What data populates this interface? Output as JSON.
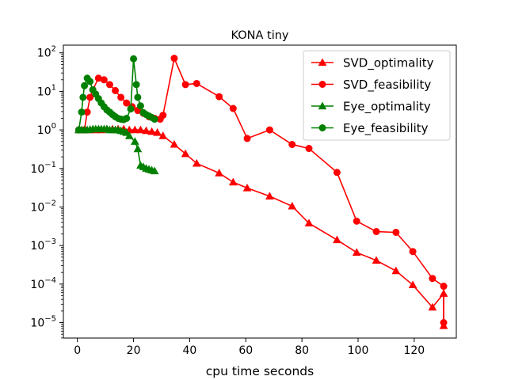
{
  "chart_data": {
    "type": "line",
    "title": "KONA tiny",
    "xlabel": "cpu time seconds",
    "ylabel": "",
    "xlim": [
      -5,
      135
    ],
    "ylim_exp": [
      -5.4,
      2.2
    ],
    "yscale": "log",
    "grid": false,
    "legend_position": "top-right",
    "x_ticks": [
      0,
      20,
      40,
      60,
      80,
      100,
      120
    ],
    "y_tick_exponents": [
      -5,
      -4,
      -3,
      -2,
      -1,
      0,
      1,
      2
    ],
    "series": [
      {
        "name": "SVD_optimality",
        "color": "#ff0000",
        "marker": "triangle",
        "points": [
          [
            0.5,
            1.0
          ],
          [
            2.5,
            1.0
          ],
          [
            4.5,
            1.0
          ],
          [
            6.5,
            1.0
          ],
          [
            8.5,
            1.0
          ],
          [
            10.5,
            1.05
          ],
          [
            12.5,
            1.05
          ],
          [
            14.5,
            1.05
          ],
          [
            16.5,
            1.05
          ],
          [
            18.5,
            1.0
          ],
          [
            20.5,
            1.0
          ],
          [
            22.5,
            1.0
          ],
          [
            24.5,
            0.95
          ],
          [
            26.5,
            0.9
          ],
          [
            28.5,
            0.85
          ],
          [
            30.5,
            0.7
          ],
          [
            34.5,
            0.42
          ],
          [
            38.5,
            0.24
          ],
          [
            42.5,
            0.135
          ],
          [
            50.5,
            0.076
          ],
          [
            55.5,
            0.044
          ],
          [
            60.5,
            0.031
          ],
          [
            68.5,
            0.019
          ],
          [
            76.5,
            0.0105
          ],
          [
            82.5,
            0.0038
          ],
          [
            92.5,
            0.0014
          ],
          [
            99.5,
            0.00066
          ],
          [
            106.5,
            0.00041
          ],
          [
            113.5,
            0.00022
          ],
          [
            119.5,
            9.5e-05
          ],
          [
            126.5,
            2.5e-05
          ],
          [
            130.5,
            5.7e-05
          ],
          [
            130.5,
            8.3e-06
          ]
        ]
      },
      {
        "name": "SVD_feasibility",
        "color": "#ff0000",
        "marker": "circle",
        "points": [
          [
            0.5,
            1.0
          ],
          [
            2.5,
            1.0
          ],
          [
            3.5,
            2.9
          ],
          [
            4.5,
            7.0
          ],
          [
            5.5,
            11.0
          ],
          [
            7.5,
            22.0
          ],
          [
            9.5,
            20.0
          ],
          [
            11.5,
            15.0
          ],
          [
            13.5,
            10.5
          ],
          [
            15.5,
            7.0
          ],
          [
            17.5,
            5.0
          ],
          [
            19.5,
            4.0
          ],
          [
            21.5,
            3.2
          ],
          [
            23.5,
            2.7
          ],
          [
            25.5,
            2.2
          ],
          [
            27.5,
            2.0
          ],
          [
            29.5,
            1.9
          ],
          [
            30.5,
            2.4
          ],
          [
            34.5,
            72.0
          ],
          [
            38.5,
            15.0
          ],
          [
            42.5,
            16.0
          ],
          [
            50.5,
            7.3
          ],
          [
            55.5,
            3.6
          ],
          [
            60.5,
            0.6
          ],
          [
            68.5,
            1.0
          ],
          [
            76.5,
            0.42
          ],
          [
            82.5,
            0.33
          ],
          [
            92.5,
            0.079
          ],
          [
            99.5,
            0.0043
          ],
          [
            106.5,
            0.0023
          ],
          [
            113.5,
            0.0022
          ],
          [
            119.5,
            0.0007
          ],
          [
            126.5,
            0.00014
          ],
          [
            130.5,
            8.8e-05
          ],
          [
            130.5,
            1e-05
          ]
        ]
      },
      {
        "name": "Eye_optimality",
        "color": "#008000",
        "marker": "triangle",
        "points": [
          [
            0.5,
            1.0
          ],
          [
            1.5,
            1.0
          ],
          [
            2.5,
            1.0
          ],
          [
            3.5,
            1.0
          ],
          [
            4.5,
            1.02
          ],
          [
            5.5,
            1.05
          ],
          [
            6.5,
            1.05
          ],
          [
            7.5,
            1.05
          ],
          [
            8.5,
            1.05
          ],
          [
            9.5,
            1.05
          ],
          [
            10.5,
            1.05
          ],
          [
            11.5,
            1.0
          ],
          [
            12.5,
            1.0
          ],
          [
            13.5,
            1.0
          ],
          [
            14.5,
            1.0
          ],
          [
            15.5,
            0.95
          ],
          [
            16.5,
            0.9
          ],
          [
            17.5,
            0.85
          ],
          [
            18.5,
            0.7
          ],
          [
            20.5,
            0.5
          ],
          [
            21.5,
            0.32
          ],
          [
            22.5,
            0.12
          ],
          [
            23.5,
            0.11
          ],
          [
            24.5,
            0.1
          ],
          [
            25.5,
            0.095
          ],
          [
            26.5,
            0.09
          ],
          [
            27.5,
            0.086
          ]
        ]
      },
      {
        "name": "Eye_feasibility",
        "color": "#008000",
        "marker": "circle",
        "points": [
          [
            0.5,
            1.0
          ],
          [
            1.5,
            2.9
          ],
          [
            2.0,
            7.0
          ],
          [
            2.5,
            14.0
          ],
          [
            3.5,
            22.0
          ],
          [
            4.5,
            18.0
          ],
          [
            5.5,
            11.0
          ],
          [
            6.5,
            8.5
          ],
          [
            7.5,
            6.5
          ],
          [
            8.5,
            5.0
          ],
          [
            9.5,
            4.0
          ],
          [
            10.5,
            3.3
          ],
          [
            11.5,
            2.9
          ],
          [
            12.5,
            2.5
          ],
          [
            13.5,
            2.2
          ],
          [
            14.5,
            2.0
          ],
          [
            15.5,
            1.9
          ],
          [
            16.5,
            1.85
          ],
          [
            17.5,
            2.0
          ],
          [
            19.0,
            3.5
          ],
          [
            20.0,
            70.0
          ],
          [
            21.0,
            15.0
          ],
          [
            21.5,
            7.0
          ],
          [
            22.5,
            4.2
          ],
          [
            23.5,
            2.8
          ],
          [
            24.5,
            2.5
          ],
          [
            25.5,
            2.3
          ],
          [
            26.5,
            2.1
          ],
          [
            27.5,
            1.9
          ]
        ]
      }
    ]
  }
}
